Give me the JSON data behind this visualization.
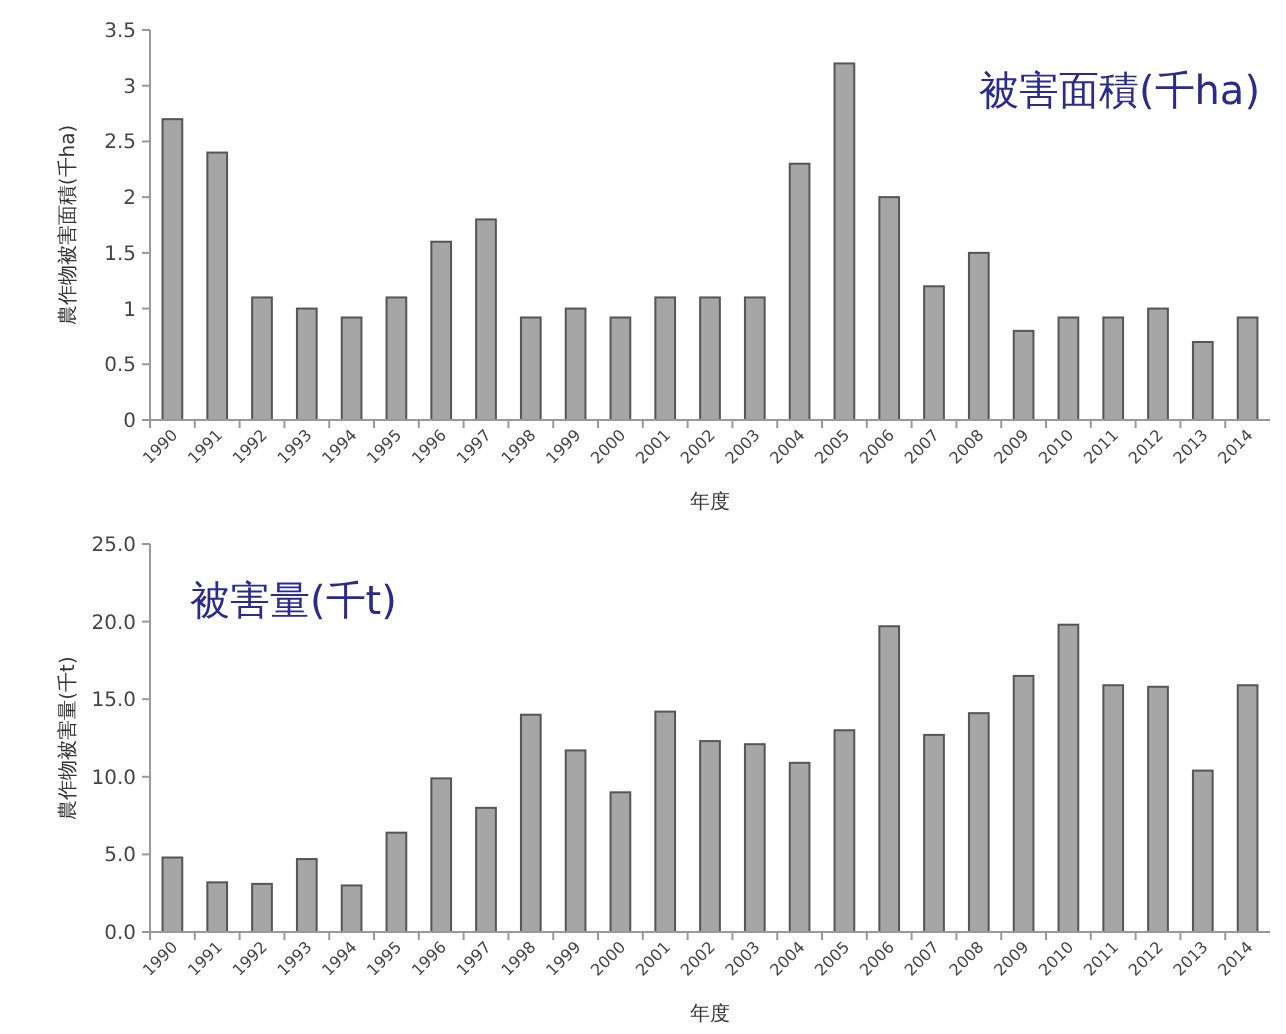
{
  "chart_data": [
    {
      "type": "bar",
      "ylabel": "農作物被害面積(千ha)",
      "xlabel": "年度",
      "annotations": [
        "被害面積(千ha)"
      ],
      "categories": [
        "1990",
        "1991",
        "1992",
        "1993",
        "1994",
        "1995",
        "1996",
        "1997",
        "1998",
        "1999",
        "2000",
        "2001",
        "2002",
        "2003",
        "2004",
        "2005",
        "2006",
        "2007",
        "2008",
        "2009",
        "2010",
        "2011",
        "2012",
        "2013",
        "2014"
      ],
      "values": [
        2.7,
        2.4,
        1.1,
        1.0,
        0.92,
        1.1,
        1.6,
        1.8,
        0.92,
        1.0,
        0.92,
        1.1,
        1.1,
        1.1,
        2.3,
        3.2,
        2.0,
        1.2,
        1.5,
        0.8,
        0.92,
        0.92,
        1.0,
        0.7,
        0.92
      ],
      "color": "#a6a6a6",
      "ylim": [
        0,
        3.5
      ],
      "yticks": [
        0,
        0.5,
        1,
        1.5,
        2,
        2.5,
        3,
        3.5
      ],
      "grid": false
    },
    {
      "type": "bar",
      "ylabel": "農作物被害量(千t)",
      "xlabel": "年度",
      "annotations": [
        "被害量(千t)"
      ],
      "categories": [
        "1990",
        "1991",
        "1992",
        "1993",
        "1994",
        "1995",
        "1996",
        "1997",
        "1998",
        "1999",
        "2000",
        "2001",
        "2002",
        "2003",
        "2004",
        "2005",
        "2006",
        "2007",
        "2008",
        "2009",
        "2010",
        "2011",
        "2012",
        "2013",
        "2014"
      ],
      "values": [
        4.8,
        3.2,
        3.1,
        4.7,
        3.0,
        6.4,
        9.9,
        8.0,
        14.0,
        11.7,
        9.0,
        14.2,
        12.3,
        12.1,
        10.9,
        13.0,
        19.7,
        12.7,
        14.1,
        16.5,
        19.8,
        15.9,
        15.8,
        10.4,
        15.9
      ],
      "color": "#a6a6a6",
      "ylim": [
        0,
        25
      ],
      "yticks": [
        {
          "value": 0,
          "label": "0.0"
        },
        {
          "value": 5,
          "label": "5.0"
        },
        {
          "value": 10,
          "label": "10.0"
        },
        {
          "value": 15,
          "label": "15.0"
        },
        {
          "value": 20,
          "label": "20.0"
        },
        {
          "value": 25,
          "label": "25.0"
        }
      ],
      "grid": false
    }
  ]
}
